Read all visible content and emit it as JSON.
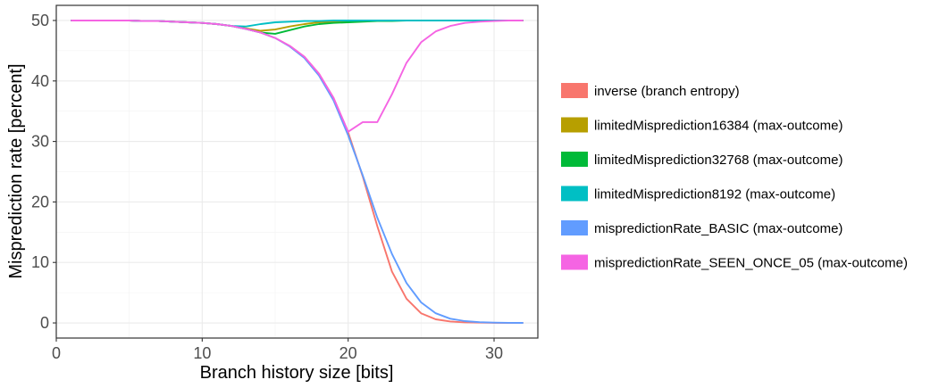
{
  "chart_data": {
    "type": "line",
    "xlabel": "Branch history size [bits]",
    "ylabel": "Misprediction rate [percent]",
    "xlim": [
      0,
      33
    ],
    "ylim": [
      -2.5,
      52.5
    ],
    "x_ticks": [
      0,
      10,
      20,
      30
    ],
    "y_ticks": [
      0,
      10,
      20,
      30,
      40,
      50
    ],
    "grid": true,
    "legend_position": "right",
    "series": [
      {
        "name": "inverse (branch entropy)",
        "color": "#F8766D",
        "x": [
          1,
          2,
          3,
          4,
          5,
          6,
          7,
          8,
          9,
          10,
          11,
          12,
          13,
          14,
          15,
          16,
          17,
          18,
          19,
          20,
          21,
          22,
          23,
          24,
          25,
          26,
          27,
          28,
          29,
          30,
          31,
          32
        ],
        "y": [
          50,
          50,
          50,
          50,
          50,
          49.9,
          49.9,
          49.8,
          49.7,
          49.6,
          49.4,
          49.1,
          48.6,
          48.0,
          47.1,
          45.8,
          44.0,
          41.2,
          37.2,
          31.5,
          24.2,
          16.0,
          8.5,
          4.0,
          1.6,
          0.6,
          0.25,
          0.1,
          0.05,
          0.02,
          0.01,
          0
        ]
      },
      {
        "name": "limitedMisprediction16384 (max-outcome)",
        "color": "#B79F00",
        "x": [
          1,
          2,
          3,
          4,
          5,
          6,
          7,
          8,
          9,
          10,
          11,
          12,
          13,
          14,
          15,
          16,
          17,
          18,
          19,
          20,
          21,
          22,
          23,
          24,
          25,
          26,
          27,
          28,
          29,
          30,
          31,
          32
        ],
        "y": [
          50,
          50,
          50,
          50,
          50,
          49.9,
          49.9,
          49.8,
          49.7,
          49.6,
          49.4,
          49.1,
          48.7,
          48.3,
          48.5,
          49.0,
          49.4,
          49.7,
          49.8,
          49.9,
          50,
          50,
          50,
          50,
          50,
          50,
          50,
          50,
          50,
          50,
          50,
          50
        ]
      },
      {
        "name": "limitedMisprediction32768 (max-outcome)",
        "color": "#00BA38",
        "x": [
          1,
          2,
          3,
          4,
          5,
          6,
          7,
          8,
          9,
          10,
          11,
          12,
          13,
          14,
          15,
          16,
          17,
          18,
          19,
          20,
          21,
          22,
          23,
          24,
          25,
          26,
          27,
          28,
          29,
          30,
          31,
          32
        ],
        "y": [
          50,
          50,
          50,
          50,
          50,
          49.9,
          49.9,
          49.8,
          49.7,
          49.6,
          49.4,
          49.1,
          48.6,
          48.0,
          47.8,
          48.4,
          49.0,
          49.4,
          49.6,
          49.7,
          49.8,
          49.9,
          49.9,
          50,
          50,
          50,
          50,
          50,
          50,
          50,
          50,
          50
        ]
      },
      {
        "name": "limitedMisprediction8192 (max-outcome)",
        "color": "#00BFC4",
        "x": [
          1,
          2,
          3,
          4,
          5,
          6,
          7,
          8,
          9,
          10,
          11,
          12,
          13,
          14,
          15,
          16,
          17,
          18,
          19,
          20,
          21,
          22,
          23,
          24,
          25,
          26,
          27,
          28,
          29,
          30,
          31,
          32
        ],
        "y": [
          50,
          50,
          50,
          50,
          50,
          49.9,
          49.9,
          49.8,
          49.7,
          49.6,
          49.4,
          49.1,
          49.0,
          49.4,
          49.7,
          49.8,
          49.9,
          49.9,
          50,
          50,
          50,
          50,
          50,
          50,
          50,
          50,
          50,
          50,
          50,
          50,
          50,
          50
        ]
      },
      {
        "name": "mispredictionRate_BASIC (max-outcome)",
        "color": "#619CFF",
        "x": [
          1,
          2,
          3,
          4,
          5,
          6,
          7,
          8,
          9,
          10,
          11,
          12,
          13,
          14,
          15,
          16,
          17,
          18,
          19,
          20,
          21,
          22,
          23,
          24,
          25,
          26,
          27,
          28,
          29,
          30,
          31,
          32
        ],
        "y": [
          50,
          50,
          50,
          50,
          50,
          49.9,
          49.9,
          49.8,
          49.7,
          49.6,
          49.4,
          49.1,
          48.6,
          48.0,
          47.1,
          45.7,
          43.8,
          40.9,
          36.8,
          31.0,
          24.4,
          17.4,
          11.4,
          6.6,
          3.4,
          1.6,
          0.7,
          0.3,
          0.12,
          0.05,
          0.02,
          0.01
        ]
      },
      {
        "name": "mispredictionRate_SEEN_ONCE_05 (max-outcome)",
        "color": "#F564E3",
        "x": [
          1,
          2,
          3,
          4,
          5,
          6,
          7,
          8,
          9,
          10,
          11,
          12,
          13,
          14,
          15,
          16,
          17,
          18,
          19,
          20,
          21,
          22,
          23,
          24,
          25,
          26,
          27,
          28,
          29,
          30,
          31,
          32
        ],
        "y": [
          50,
          50,
          50,
          50,
          50,
          49.9,
          49.9,
          49.8,
          49.7,
          49.6,
          49.4,
          49.1,
          48.6,
          48.0,
          47.1,
          45.8,
          44.0,
          41.2,
          37.2,
          31.6,
          33.2,
          33.2,
          37.8,
          43.0,
          46.4,
          48.2,
          49.1,
          49.6,
          49.8,
          49.9,
          50,
          50
        ]
      }
    ]
  }
}
